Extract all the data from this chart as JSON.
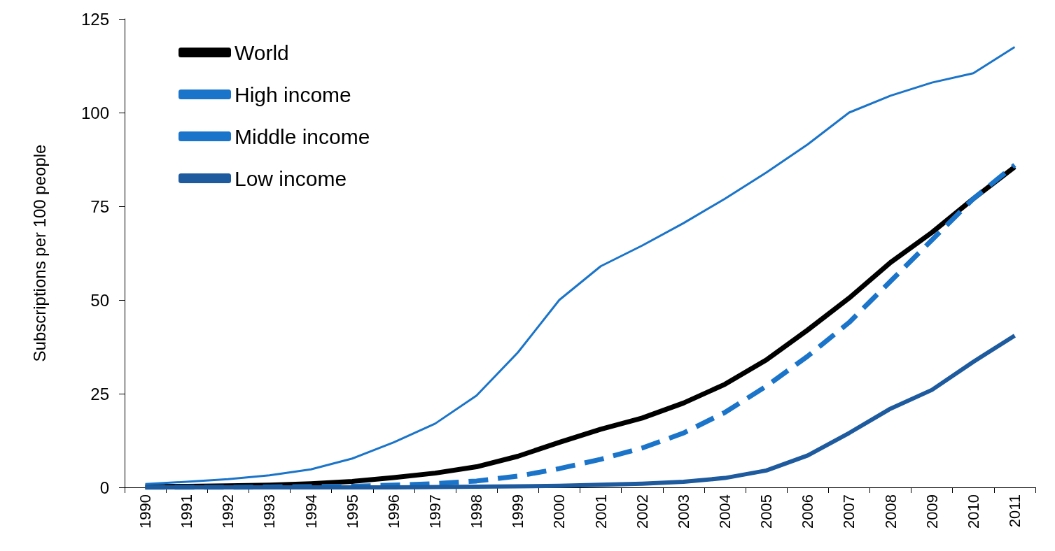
{
  "chart_data": {
    "type": "line",
    "ylabel": "Subscriptions per 100 people",
    "categories": [
      "1990",
      "1991",
      "1992",
      "1993",
      "1994",
      "1995",
      "1996",
      "1997",
      "1998",
      "1999",
      "2000",
      "2001",
      "2002",
      "2003",
      "2004",
      "2005",
      "2006",
      "2007",
      "2008",
      "2009",
      "2010",
      "2011"
    ],
    "series": [
      {
        "name": "World",
        "color": "#000000",
        "line_style": "solid",
        "values": [
          0.2,
          0.3,
          0.4,
          0.6,
          1,
          1.6,
          2.6,
          3.8,
          5.5,
          8.3,
          12,
          15.5,
          18.5,
          22.5,
          27.5,
          34,
          42,
          50.5,
          60,
          68,
          77,
          85.5
        ]
      },
      {
        "name": "High income",
        "color": "#1a74c9",
        "line_style": "solid",
        "values": [
          0.9,
          1.5,
          2.2,
          3.2,
          4.8,
          7.7,
          12,
          17,
          24.5,
          36,
          50,
          59,
          64.5,
          70.5,
          77,
          84,
          91.5,
          100,
          104.5,
          108,
          110.5,
          117.5
        ]
      },
      {
        "name": "Middle income",
        "color": "#1a74c9",
        "line_style": "dashed",
        "values": [
          0,
          0,
          0,
          0.1,
          0.2,
          0.3,
          0.6,
          1,
          1.7,
          3,
          5,
          7.5,
          10.5,
          14.5,
          20,
          27,
          35,
          44,
          55,
          66,
          77,
          86
        ]
      },
      {
        "name": "Low income",
        "color": "#1d5a9e",
        "line_style": "solid",
        "values": [
          0,
          0,
          0,
          0,
          0,
          0,
          0,
          0.1,
          0.2,
          0.3,
          0.4,
          0.7,
          1,
          1.5,
          2.5,
          4.5,
          8.5,
          14.5,
          21,
          26,
          33.5,
          40.5
        ]
      }
    ],
    "ylim": [
      0,
      125
    ],
    "yticks": [
      0,
      25,
      50,
      75,
      100,
      125
    ],
    "grid": false,
    "legend": "top left",
    "marker": "none"
  }
}
